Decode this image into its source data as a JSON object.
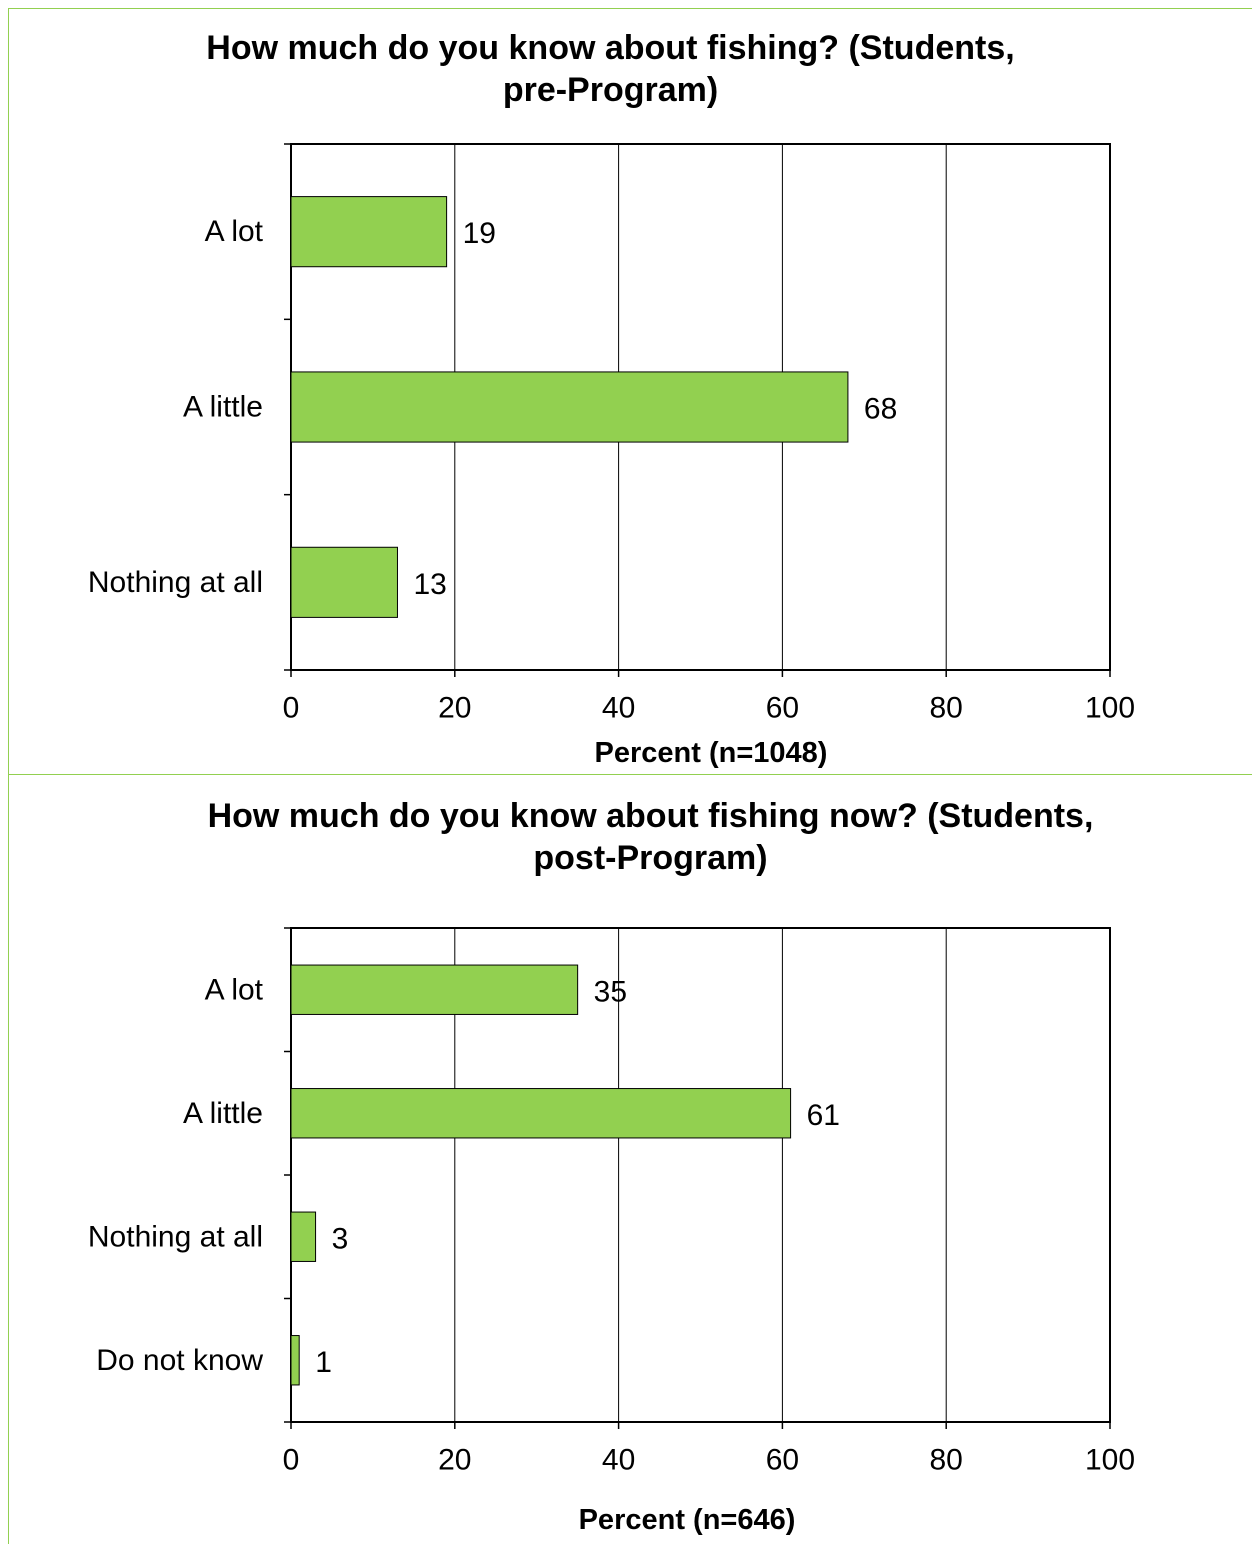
{
  "chart_data": [
    {
      "type": "bar",
      "orientation": "horizontal",
      "title_lines": [
        "How much do you know about fishing? (Students,",
        "pre-Program)"
      ],
      "categories": [
        "A lot",
        "A little",
        "Nothing at all"
      ],
      "values": [
        19,
        68,
        13
      ],
      "value_labels": [
        "19",
        "68",
        "13"
      ],
      "xlabel": "Percent (n=1048)",
      "xlim": [
        0,
        100
      ],
      "xticks": [
        "0",
        "20",
        "40",
        "60",
        "80",
        "100"
      ],
      "grid": true,
      "bar_color": "#92d050"
    },
    {
      "type": "bar",
      "orientation": "horizontal",
      "title_lines": [
        "How much do you know about fishing now? (Students,",
        "post-Program)"
      ],
      "categories": [
        "A lot",
        "A little",
        "Nothing at all",
        "Do not know"
      ],
      "values": [
        35,
        61,
        3,
        1
      ],
      "value_labels": [
        "35",
        "61",
        "3",
        "1"
      ],
      "xlabel": "Percent (n=646)",
      "xlim": [
        0,
        100
      ],
      "xticks": [
        "0",
        "20",
        "40",
        "60",
        "80",
        "100"
      ],
      "grid": true,
      "bar_color": "#92d050"
    }
  ],
  "colors": {
    "panel_border": "#92d050",
    "bar_fill": "#92d050",
    "bar_stroke": "#000000"
  }
}
